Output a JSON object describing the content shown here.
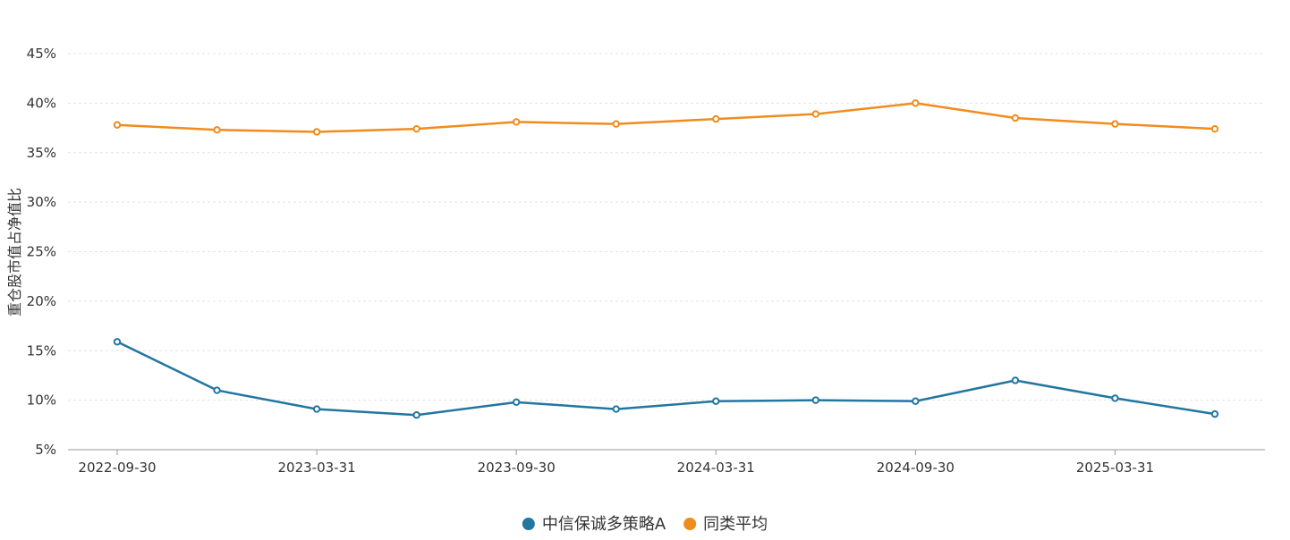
{
  "chart_data": {
    "type": "line",
    "title": "",
    "xlabel": "",
    "ylabel": "重仓股市值占净值比",
    "x": [
      "2022-09-30",
      "2022-12-31",
      "2023-03-31",
      "2023-06-30",
      "2023-09-30",
      "2023-12-31",
      "2024-03-31",
      "2024-06-30",
      "2024-09-30",
      "2024-12-31",
      "2025-03-31",
      "2025-06-30"
    ],
    "xtick_labels": [
      "2022-09-30",
      "2023-03-31",
      "2023-09-30",
      "2024-03-31",
      "2024-09-30",
      "2025-03-31"
    ],
    "ytick_labels": [
      "5%",
      "10%",
      "15%",
      "20%",
      "25%",
      "30%",
      "35%",
      "40%",
      "45%"
    ],
    "ylim": [
      5,
      45
    ],
    "grid": true,
    "legend_position": "bottom",
    "series": [
      {
        "name": "中信保诚多策略A",
        "color": "#2276a0",
        "values": [
          15.9,
          11.0,
          9.1,
          8.5,
          9.8,
          9.1,
          9.9,
          10.0,
          9.9,
          12.0,
          10.2,
          8.6
        ]
      },
      {
        "name": "同类平均",
        "color": "#f08c1e",
        "values": [
          37.8,
          37.3,
          37.1,
          37.4,
          38.1,
          37.9,
          38.4,
          38.9,
          40.0,
          38.5,
          37.9,
          37.4
        ]
      }
    ]
  }
}
